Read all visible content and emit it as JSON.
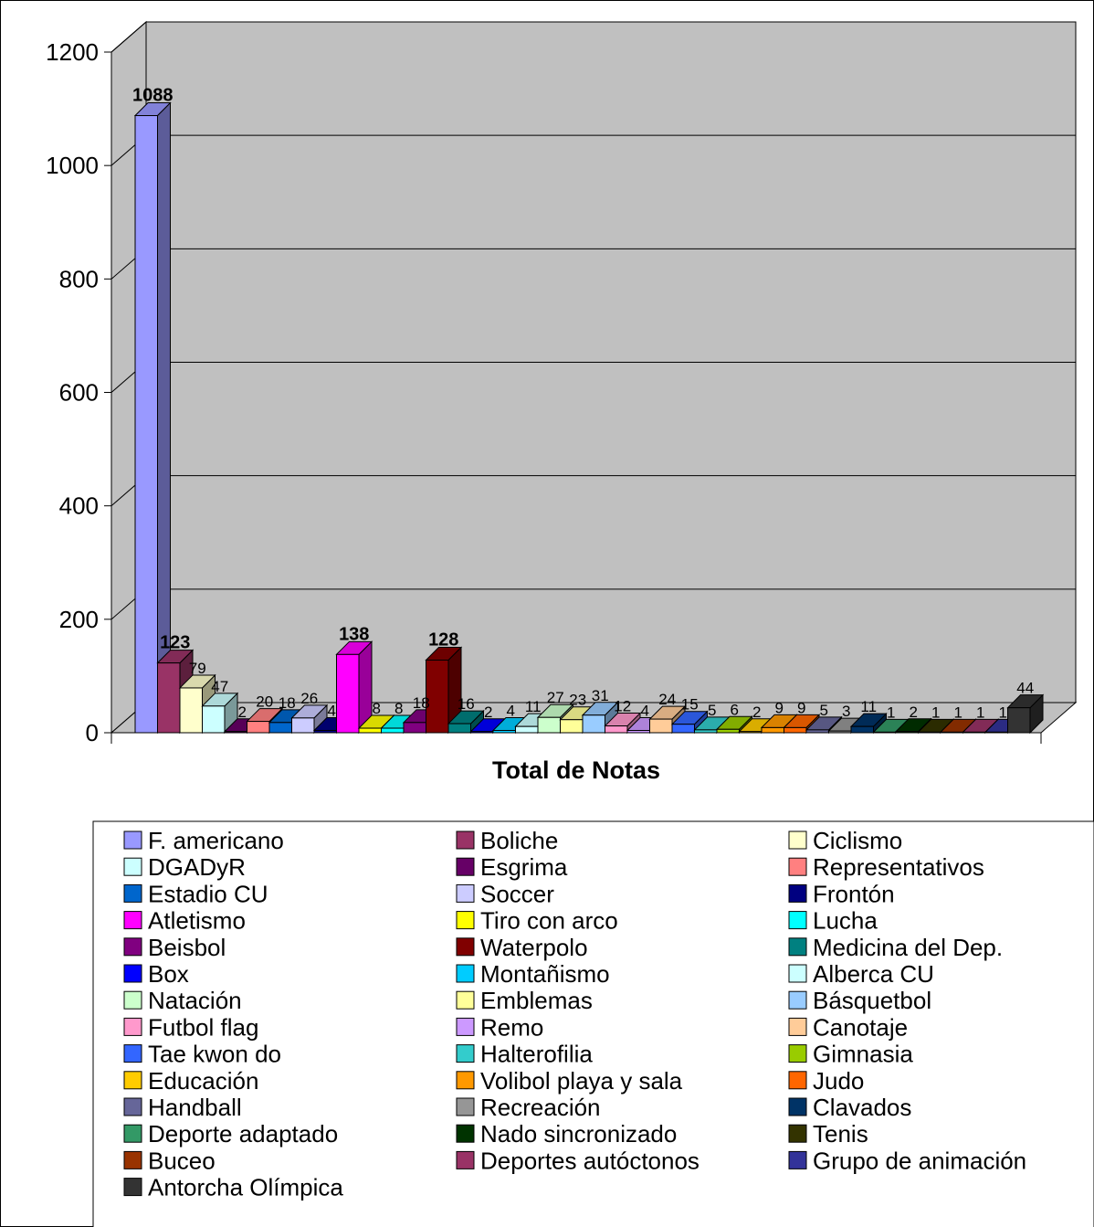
{
  "chart_data": {
    "type": "bar",
    "xlabel": "Total de Notas",
    "ylim": [
      0,
      1200
    ],
    "yticks": [
      "0",
      "200",
      "400",
      "600",
      "800",
      "1000",
      "1200"
    ],
    "grid": true,
    "legend_position": "bottom",
    "series": [
      {
        "name": "F. americano",
        "value": 1088,
        "color": "#9999ff"
      },
      {
        "name": "Boliche",
        "value": 123,
        "color": "#993366"
      },
      {
        "name": "Ciclismo",
        "value": 79,
        "color": "#ffffcc"
      },
      {
        "name": "DGADyR",
        "value": 47,
        "color": "#ccffff"
      },
      {
        "name": "Esgrima",
        "value": 2,
        "color": "#660066"
      },
      {
        "name": "Representativos",
        "value": 20,
        "color": "#ff8080"
      },
      {
        "name": "Estadio CU",
        "value": 18,
        "color": "#0066cc"
      },
      {
        "name": "Soccer",
        "value": 26,
        "color": "#ccccff"
      },
      {
        "name": "Frontón",
        "value": 4,
        "color": "#000080"
      },
      {
        "name": "Atletismo",
        "value": 138,
        "color": "#ff00ff"
      },
      {
        "name": "Tiro con arco",
        "value": 8,
        "color": "#ffff00"
      },
      {
        "name": "Lucha",
        "value": 8,
        "color": "#00ffff"
      },
      {
        "name": "Beisbol",
        "value": 18,
        "color": "#800080"
      },
      {
        "name": "Waterpolo",
        "value": 128,
        "color": "#800000"
      },
      {
        "name": "Medicina del Dep.",
        "value": 16,
        "color": "#008080"
      },
      {
        "name": "Box",
        "value": 2,
        "color": "#0000ff"
      },
      {
        "name": "Montañismo",
        "value": 4,
        "color": "#00ccff"
      },
      {
        "name": "Alberca CU",
        "value": 11,
        "color": "#ccffff"
      },
      {
        "name": "Natación",
        "value": 27,
        "color": "#ccffcc"
      },
      {
        "name": "Emblemas",
        "value": 23,
        "color": "#ffff99"
      },
      {
        "name": "Básquetbol",
        "value": 31,
        "color": "#99ccff"
      },
      {
        "name": "Futbol flag",
        "value": 12,
        "color": "#ff99cc"
      },
      {
        "name": "Remo",
        "value": 4,
        "color": "#cc99ff"
      },
      {
        "name": "Canotaje",
        "value": 24,
        "color": "#ffcc99"
      },
      {
        "name": "Tae kwon do",
        "value": 15,
        "color": "#3366ff"
      },
      {
        "name": "Halterofilia",
        "value": 5,
        "color": "#33cccc"
      },
      {
        "name": "Gimnasia",
        "value": 6,
        "color": "#99cc00"
      },
      {
        "name": "Educación",
        "value": 2,
        "color": "#ffcc00"
      },
      {
        "name": "Volibol playa y sala",
        "value": 9,
        "color": "#ff9900"
      },
      {
        "name": "Judo",
        "value": 9,
        "color": "#ff6600"
      },
      {
        "name": "Handball",
        "value": 5,
        "color": "#666699"
      },
      {
        "name": "Recreación",
        "value": 3,
        "color": "#969696"
      },
      {
        "name": "Clavados",
        "value": 11,
        "color": "#003366"
      },
      {
        "name": "Deporte adaptado",
        "value": 1,
        "color": "#339966"
      },
      {
        "name": "Nado sincronizado",
        "value": 2,
        "color": "#003300"
      },
      {
        "name": "Tenis",
        "value": 1,
        "color": "#333300"
      },
      {
        "name": "Buceo",
        "value": 1,
        "color": "#993300"
      },
      {
        "name": "Deportes autóctonos",
        "value": 1,
        "color": "#993366"
      },
      {
        "name": "Grupo de animación",
        "value": 1,
        "color": "#333399"
      },
      {
        "name": "Antorcha Olímpica",
        "value": 44,
        "color": "#333333"
      }
    ]
  }
}
